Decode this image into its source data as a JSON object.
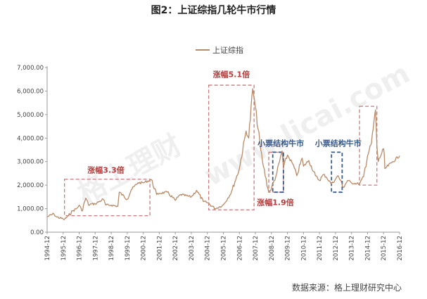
{
  "title": "图2：上证综指几轮牛市行情",
  "source": "数据来源：格上理财研究中心",
  "watermark": [
    "格上理财",
    "www.licai.com"
  ],
  "colors": {
    "line": "#b98a66",
    "red": "#c97a7a",
    "red_text": "#b23b3b",
    "blue": "#3a5a88",
    "blue_text": "#3a5a88",
    "axis": "#9a9a9a"
  },
  "chart_data": {
    "type": "line",
    "series": [
      {
        "name": "上证综指",
        "color": "#b98a66"
      }
    ],
    "ylim": [
      0,
      7000
    ],
    "y_ticks": [
      "0.00",
      "1,000.00",
      "2,000.00",
      "3,000.00",
      "4,000.00",
      "5,000.00",
      "6,000.00",
      "7,000.00"
    ],
    "x_ticks": [
      "1994-12",
      "1995-12",
      "1996-12",
      "1997-12",
      "1998-12",
      "1999-12",
      "2000-12",
      "2001-12",
      "2002-12",
      "2003-12",
      "2004-12",
      "2005-12",
      "2006-12",
      "2007-12",
      "2008-12",
      "2009-12",
      "2010-12",
      "2011-12",
      "2012-12",
      "2013-12",
      "2014-12",
      "2015-12",
      "2016-12"
    ],
    "x_range": [
      "1994-12",
      "2016-12"
    ],
    "points": [
      [
        "1994-12",
        650
      ],
      [
        "1995-05",
        780
      ],
      [
        "1995-07",
        650
      ],
      [
        "1995-12",
        560
      ],
      [
        "1996-01",
        540
      ],
      [
        "1996-04",
        700
      ],
      [
        "1996-07",
        900
      ],
      [
        "1996-10",
        1000
      ],
      [
        "1996-12",
        1150
      ],
      [
        "1997-02",
        900
      ],
      [
        "1997-05",
        1450
      ],
      [
        "1997-07",
        1150
      ],
      [
        "1997-09",
        1200
      ],
      [
        "1997-12",
        1200
      ],
      [
        "1998-06",
        1400
      ],
      [
        "1998-08",
        1150
      ],
      [
        "1998-12",
        1150
      ],
      [
        "1999-05",
        1100
      ],
      [
        "1999-06",
        1700
      ],
      [
        "1999-12",
        1400
      ],
      [
        "2000-03",
        1800
      ],
      [
        "2000-08",
        2100
      ],
      [
        "2000-12",
        2100
      ],
      [
        "2001-06",
        2240
      ],
      [
        "2001-10",
        1600
      ],
      [
        "2001-12",
        1650
      ],
      [
        "2002-06",
        1700
      ],
      [
        "2002-12",
        1350
      ],
      [
        "2003-04",
        1600
      ],
      [
        "2003-12",
        1500
      ],
      [
        "2004-04",
        1780
      ],
      [
        "2004-09",
        1300
      ],
      [
        "2004-12",
        1260
      ],
      [
        "2005-06",
        1000
      ],
      [
        "2005-12",
        1160
      ],
      [
        "2006-06",
        1700
      ],
      [
        "2006-12",
        2700
      ],
      [
        "2007-05",
        4300
      ],
      [
        "2007-07",
        4000
      ],
      [
        "2007-10",
        6100
      ],
      [
        "2007-12",
        5300
      ],
      [
        "2008-04",
        3500
      ],
      [
        "2008-06",
        2800
      ],
      [
        "2008-10",
        1700
      ],
      [
        "2008-12",
        1850
      ],
      [
        "2009-04",
        2500
      ],
      [
        "2009-08",
        3450
      ],
      [
        "2009-09",
        2750
      ],
      [
        "2009-12",
        3280
      ],
      [
        "2010-04",
        2900
      ],
      [
        "2010-07",
        2400
      ],
      [
        "2010-11",
        3150
      ],
      [
        "2010-12",
        2800
      ],
      [
        "2011-04",
        3050
      ],
      [
        "2011-09",
        2400
      ],
      [
        "2011-12",
        2200
      ],
      [
        "2012-03",
        2450
      ],
      [
        "2012-05",
        2350
      ],
      [
        "2012-09",
        2050
      ],
      [
        "2012-12",
        2250
      ],
      [
        "2013-02",
        2400
      ],
      [
        "2013-06",
        1900
      ],
      [
        "2013-09",
        2200
      ],
      [
        "2013-12",
        2100
      ],
      [
        "2014-06",
        2050
      ],
      [
        "2014-09",
        2350
      ],
      [
        "2014-12",
        3250
      ],
      [
        "2015-03",
        3800
      ],
      [
        "2015-06",
        5200
      ],
      [
        "2015-07",
        3700
      ],
      [
        "2015-08",
        3000
      ],
      [
        "2015-12",
        3550
      ],
      [
        "2016-01",
        2700
      ],
      [
        "2016-06",
        2950
      ],
      [
        "2016-12",
        3250
      ]
    ],
    "annotations": [
      {
        "label": "涨幅3.3倍",
        "color": "red",
        "box": {
          "x0": "1996-01",
          "x1": "2001-05",
          "y0": 700,
          "y1": 2250
        },
        "label_at": [
          "1998-08",
          2530
        ],
        "anchor": "middle"
      },
      {
        "label": "涨幅5.1倍",
        "color": "red",
        "box": {
          "x0": "2005-01",
          "x1": "2007-11",
          "y0": 950,
          "y1": 6250
        },
        "label_at": [
          "2006-06",
          6590
        ],
        "anchor": "middle"
      },
      {
        "label": "涨幅1.9倍",
        "color": "red",
        "box": {
          "x0": "2008-10",
          "x1": "2009-09",
          "y0": 1700,
          "y1": 3400
        },
        "label_at": [
          "2009-03",
          1150
        ],
        "anchor": "middle"
      },
      {
        "label": "小票结构牛市",
        "color": "blue",
        "box": {
          "x0": "2009-01",
          "x1": "2009-09",
          "y0": 1700,
          "y1": 3400
        },
        "label_at": [
          "2009-07",
          3670
        ],
        "anchor": "middle"
      },
      {
        "label": "小票结构牛市",
        "color": "blue",
        "box": {
          "x0": "2012-09",
          "x1": "2013-05",
          "y0": 1700,
          "y1": 3400
        },
        "label_at": [
          "2013-02",
          3670
        ],
        "anchor": "middle"
      },
      {
        "label": "",
        "color": "red",
        "box": {
          "x0": "2014-06",
          "x1": "2015-07",
          "y0": 2000,
          "y1": 5350
        }
      }
    ],
    "legend": "top-center",
    "grid": false
  }
}
